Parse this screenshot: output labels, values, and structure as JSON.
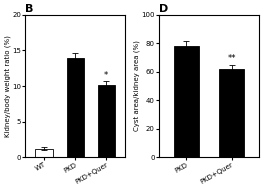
{
  "chart_data": [
    {
      "type": "bar",
      "title": "B",
      "categories": [
        "WT",
        "PKD",
        "PKD+Quer"
      ],
      "values": [
        1.2,
        14.0,
        10.2
      ],
      "errors": [
        0.2,
        0.6,
        0.5
      ],
      "colors": [
        "white",
        "black",
        "black"
      ],
      "ylabel": "Kidney/body weight ratio (%)",
      "ylim": [
        0,
        20
      ],
      "yticks": [
        0,
        5,
        10,
        15,
        20
      ],
      "annotations": [
        {
          "category": "PKD+Quer",
          "text": "*"
        }
      ]
    },
    {
      "type": "bar",
      "title": "D",
      "categories": [
        "PKD",
        "PKD+Quer"
      ],
      "values": [
        78.0,
        62.0
      ],
      "errors": [
        3.5,
        3.0
      ],
      "colors": [
        "black",
        "black"
      ],
      "ylabel": "Cyst area/kidney area (%)",
      "ylim": [
        0,
        100
      ],
      "yticks": [
        0,
        20,
        40,
        60,
        80,
        100
      ],
      "annotations": [
        {
          "category": "PKD+Quer",
          "text": "**"
        }
      ]
    }
  ]
}
